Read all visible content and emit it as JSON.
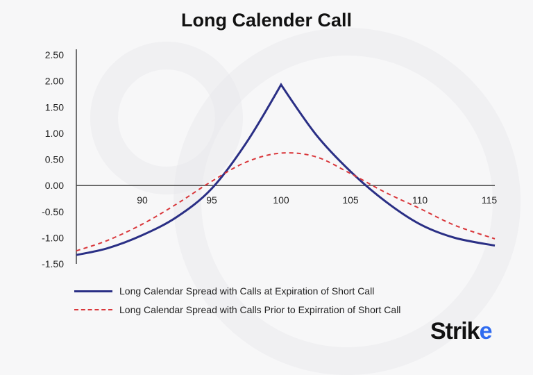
{
  "chart_data": {
    "type": "line",
    "title": "Long Calender Call",
    "xlabel": "",
    "ylabel": "",
    "xlim": [
      85.25,
      115.4
    ],
    "ylim": [
      -1.5,
      2.5
    ],
    "xticks": [
      90,
      95,
      100,
      105,
      110,
      115
    ],
    "yticks": [
      "2.50",
      "2.00",
      "1.50",
      "1.00",
      "0.50",
      "0.00",
      "-0.50",
      "-1.00",
      "-1.50"
    ],
    "grid": false,
    "legend_position": "bottom-left",
    "series": [
      {
        "name": "Long Calendar Spread with Calls at Expiration of Short Call",
        "color": "#2a2f85",
        "style": "solid",
        "x": [
          85.25,
          87.5,
          90,
          92.5,
          95,
          97.5,
          100,
          102.5,
          105,
          107.5,
          110,
          112.5,
          115.4
        ],
        "y": [
          -1.33,
          -1.2,
          -0.95,
          -0.6,
          -0.06,
          0.82,
          1.93,
          0.98,
          0.27,
          -0.3,
          -0.74,
          -1.0,
          -1.15
        ]
      },
      {
        "name": "Long Calendar Spread with Calls Prior to Expirration of Short Call",
        "color": "#d9363a",
        "style": "dashed",
        "x": [
          85.25,
          87.5,
          90,
          92.5,
          95,
          97.5,
          100,
          102.5,
          105,
          107.5,
          110,
          112.5,
          115.4
        ],
        "y": [
          -1.25,
          -1.05,
          -0.74,
          -0.35,
          0.08,
          0.45,
          0.62,
          0.55,
          0.23,
          -0.13,
          -0.44,
          -0.76,
          -1.02
        ]
      }
    ]
  },
  "brand": {
    "logo_text": "Strike"
  }
}
